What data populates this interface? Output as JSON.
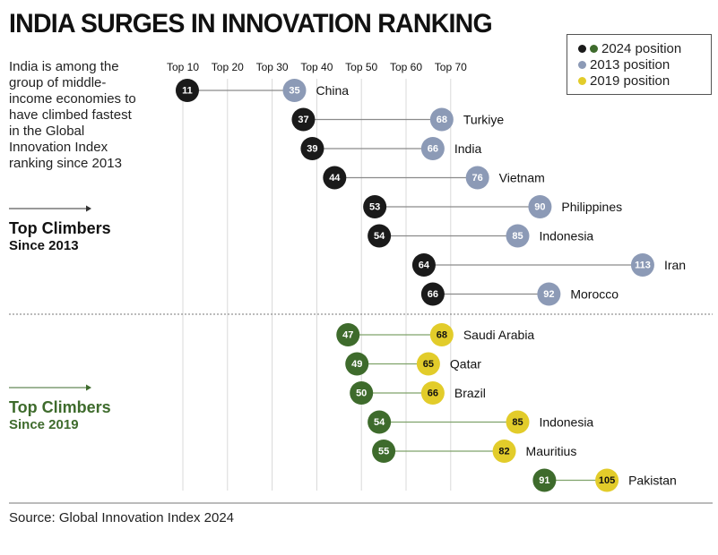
{
  "title": "INDIA SURGES IN INNOVATION RANKING",
  "intro": "India is among the group of middle-income economies to have climbed fastest in the Global Innovation Index ranking since 2013",
  "group_labels": {
    "since_2013": {
      "line1": "Top Climbers",
      "line2": "Since 2013"
    },
    "since_2019": {
      "line1": "Top Climbers",
      "line2": "Since 2019"
    }
  },
  "source": "Source: Global Innovation Index 2024",
  "legend": [
    {
      "label": "2024 position",
      "colors": [
        "#1a1a1a",
        "#3e6b2c"
      ]
    },
    {
      "label": "2013 position",
      "colors": [
        "#8c9ab6"
      ]
    },
    {
      "label": "2019 position",
      "colors": [
        "#e2cc2a"
      ]
    }
  ],
  "colors": {
    "pos_2024_a": "#1a1a1a",
    "pos_2024_b": "#3e6b2c",
    "pos_2013": "#8c9ab6",
    "pos_2019": "#e2cc2a",
    "connector_a": "#8a8a8a",
    "connector_b": "#7fa26a",
    "gridline": "#d8d8d8"
  },
  "chart_data": {
    "type": "dumbbell",
    "x_tick_labels": [
      "Top 10",
      "Top 20",
      "Top 30",
      "Top 40",
      "Top 50",
      "Top 60",
      "Top 70"
    ],
    "x_ticks": [
      10,
      20,
      30,
      40,
      50,
      60,
      70
    ],
    "groups": [
      {
        "name": "Top Climbers Since 2013",
        "from_year": "2013",
        "to_year": "2024",
        "rows": [
          {
            "country": "China",
            "rank_2024": 11,
            "rank_from": 35
          },
          {
            "country": "Turkiye",
            "rank_2024": 37,
            "rank_from": 68
          },
          {
            "country": "India",
            "rank_2024": 39,
            "rank_from": 66
          },
          {
            "country": "Vietnam",
            "rank_2024": 44,
            "rank_from": 76
          },
          {
            "country": "Philippines",
            "rank_2024": 53,
            "rank_from": 90
          },
          {
            "country": "Indonesia",
            "rank_2024": 54,
            "rank_from": 85
          },
          {
            "country": "Iran",
            "rank_2024": 64,
            "rank_from": 113
          },
          {
            "country": "Morocco",
            "rank_2024": 66,
            "rank_from": 92
          }
        ]
      },
      {
        "name": "Top Climbers Since 2019",
        "from_year": "2019",
        "to_year": "2024",
        "rows": [
          {
            "country": "Saudi Arabia",
            "rank_2024": 47,
            "rank_from": 68
          },
          {
            "country": "Qatar",
            "rank_2024": 49,
            "rank_from": 65
          },
          {
            "country": "Brazil",
            "rank_2024": 50,
            "rank_from": 66
          },
          {
            "country": "Indonesia",
            "rank_2024": 54,
            "rank_from": 85
          },
          {
            "country": "Mauritius",
            "rank_2024": 55,
            "rank_from": 82
          },
          {
            "country": "Pakistan",
            "rank_2024": 91,
            "rank_from": 105
          }
        ]
      }
    ]
  }
}
